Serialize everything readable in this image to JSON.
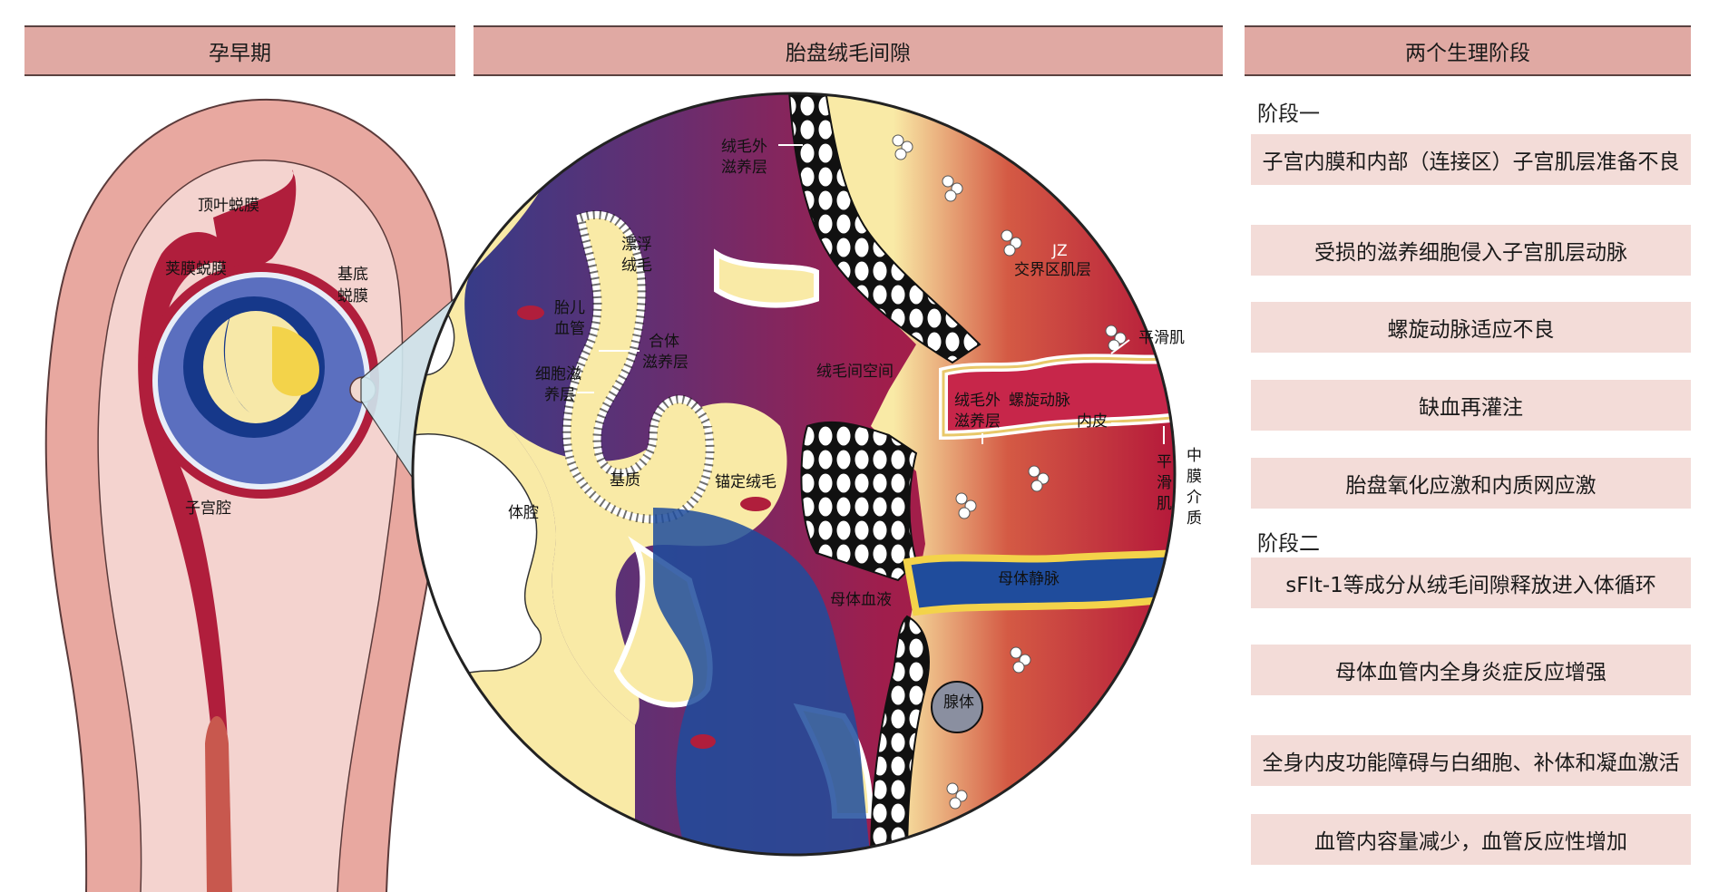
{
  "headers": {
    "early_pregnancy": "孕早期",
    "intervillous_space": "胎盘绒毛间隙",
    "two_stages": "两个生理阶段"
  },
  "uterus_labels": {
    "decidua_capsularis": "顶叶蜕膜",
    "decidua_parietalis": "荚膜蜕膜",
    "decidua_basalis_1": "基底",
    "decidua_basalis_2": "蜕膜",
    "uterine_cavity": "子宫腔"
  },
  "placenta_labels": {
    "ext_trophoblast_top_1": "绒毛外",
    "ext_trophoblast_top_2": "滋养层",
    "floating_villus_1": "漂浮",
    "floating_villus_2": "绒毛",
    "fetal_vessel_1": "胎儿",
    "fetal_vessel_2": "血管",
    "syncytio_1": "合体",
    "syncytio_2": "滋养层",
    "cyto_1": "细胞滋",
    "cyto_2": "养层",
    "intervillous": "绒毛间空间",
    "jz_abbr": "JZ",
    "jz": "交界区肌层",
    "smooth_muscle_top": "平滑肌",
    "ext_trophoblast_mid_1": "绒毛外",
    "ext_trophoblast_mid_2": "滋养层",
    "spiral_artery": "螺旋动脉",
    "endothelium": "内皮",
    "stroma": "基质",
    "anchoring_villus": "锚定绒毛",
    "body_cavity": "体腔",
    "smooth_muscle_v": [
      "平",
      "滑",
      "肌"
    ],
    "media_v": [
      "中",
      "膜",
      "介",
      "质"
    ],
    "maternal_blood": "母体血液",
    "maternal_vein": "母体静脉",
    "gland": "腺体"
  },
  "stage_one": {
    "label": "阶段一",
    "items": [
      "子宫内膜和内部（连接区）子宫肌层准备不良",
      "受损的滋养细胞侵入子宫肌层动脉",
      "螺旋动脉适应不良",
      "缺血再灌注",
      "胎盘氧化应激和内质网应激"
    ]
  },
  "stage_two": {
    "label": "阶段二",
    "items": [
      "sFlt-1等成分从绒毛间隙释放进入体循环",
      "母体血管内全身炎症反应增强",
      "全身内皮功能障碍与白细胞、补体和凝血激活",
      "血管内容量减少，血管反应性增加"
    ]
  },
  "colors": {
    "header_bg": "#e0a9a3",
    "box_bg": "#f3dcd8",
    "blood_red": "#b01e3c",
    "uterus_pink": "#e8a8a0",
    "stroma_yellow": "#f9eaa6",
    "blue": "#1f4c9c"
  }
}
